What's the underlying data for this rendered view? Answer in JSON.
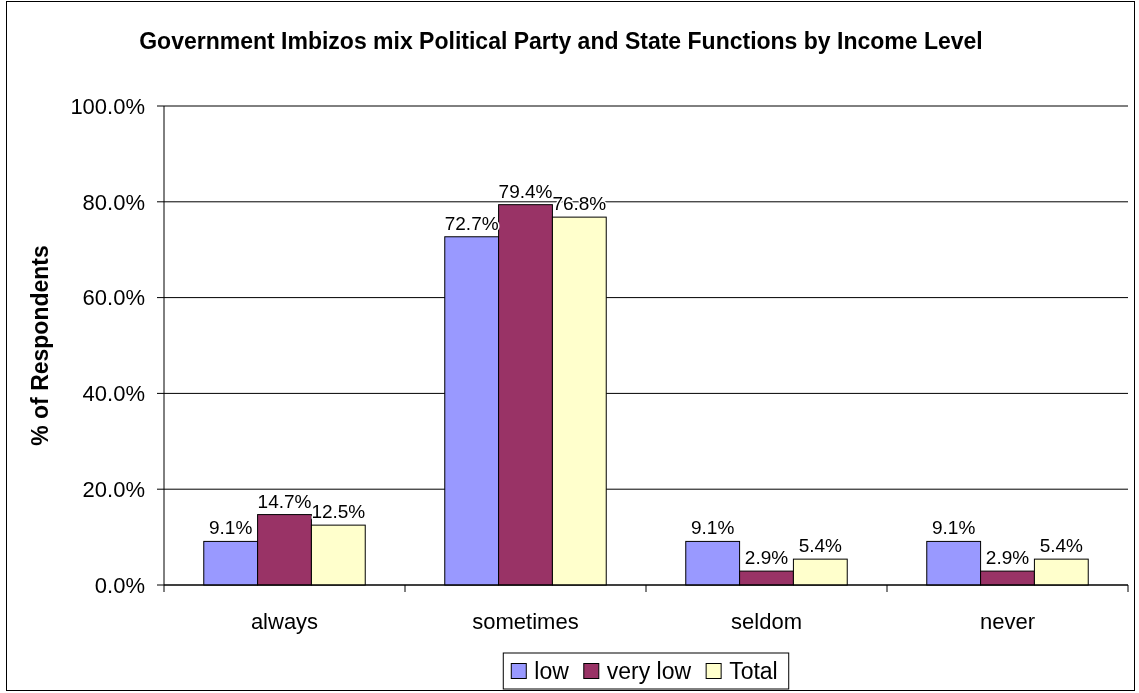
{
  "chart_data": {
    "type": "bar",
    "title": "Government Imbizos mix Political Party and State Functions by Income Level",
    "ylabel": "% of Respondents",
    "categories": [
      "always",
      "sometimes",
      "seldom",
      "never"
    ],
    "series": [
      {
        "name": "low",
        "color": "#9999ff",
        "values": [
          9.1,
          72.7,
          9.1,
          9.1
        ],
        "value_labels": [
          "9.1%",
          "72.7%",
          "9.1%",
          "9.1%"
        ]
      },
      {
        "name": "very low",
        "color": "#993366",
        "values": [
          14.7,
          79.4,
          2.9,
          2.9
        ],
        "value_labels": [
          "14.7%",
          "79.4%",
          "2.9%",
          "2.9%"
        ]
      },
      {
        "name": "Total",
        "color": "#ffffcc",
        "values": [
          12.5,
          76.8,
          5.4,
          5.4
        ],
        "value_labels": [
          "12.5%",
          "76.8%",
          "5.4%",
          "5.4%"
        ]
      }
    ],
    "ylim": [
      0,
      100
    ],
    "yticks": [
      {
        "value": 0,
        "label": "0.0%"
      },
      {
        "value": 20,
        "label": "20.0%"
      },
      {
        "value": 40,
        "label": "40.0%"
      },
      {
        "value": 60,
        "label": "60.0%"
      },
      {
        "value": 80,
        "label": "80.0%"
      },
      {
        "value": 100,
        "label": "100.0%"
      }
    ],
    "grid": "y",
    "legend": "bottom"
  }
}
